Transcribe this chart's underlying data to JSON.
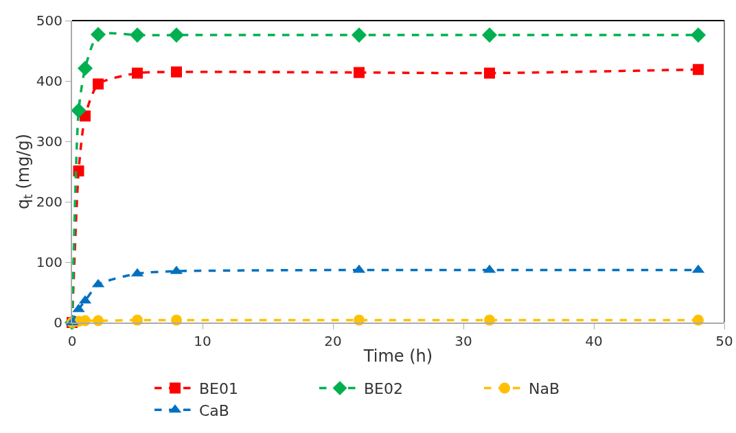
{
  "chart_data": {
    "type": "line",
    "xlabel": "Time (h)",
    "ylabel": "q$_{t}$ (mg/g)",
    "xlim": [
      0,
      50
    ],
    "ylim": [
      0,
      500
    ],
    "xticks": [
      0,
      10,
      20,
      30,
      40,
      50
    ],
    "yticks": [
      0,
      100,
      200,
      300,
      400,
      500
    ],
    "grid": false,
    "legend": "bottom",
    "line_style": "dashed",
    "x": [
      0,
      0.5,
      1,
      2,
      5,
      8,
      22,
      32,
      48
    ],
    "series": [
      {
        "name": "BE01",
        "color": "#ff0000",
        "marker": "square",
        "values": [
          0,
          251,
          342,
          395,
          413,
          415,
          414,
          413,
          419
        ]
      },
      {
        "name": "BE02",
        "color": "#00b050",
        "marker": "diamond",
        "values": [
          0,
          351,
          421,
          477,
          476,
          476,
          476,
          476,
          476
        ]
      },
      {
        "name": "NaB",
        "color": "#ffc000",
        "marker": "circle",
        "values": [
          0,
          2,
          3,
          3,
          4,
          4,
          4,
          4,
          4
        ]
      },
      {
        "name": "CaB",
        "color": "#0070c0",
        "marker": "triangle",
        "values": [
          0,
          22,
          36,
          63,
          81,
          85,
          87,
          87,
          87
        ]
      }
    ]
  }
}
